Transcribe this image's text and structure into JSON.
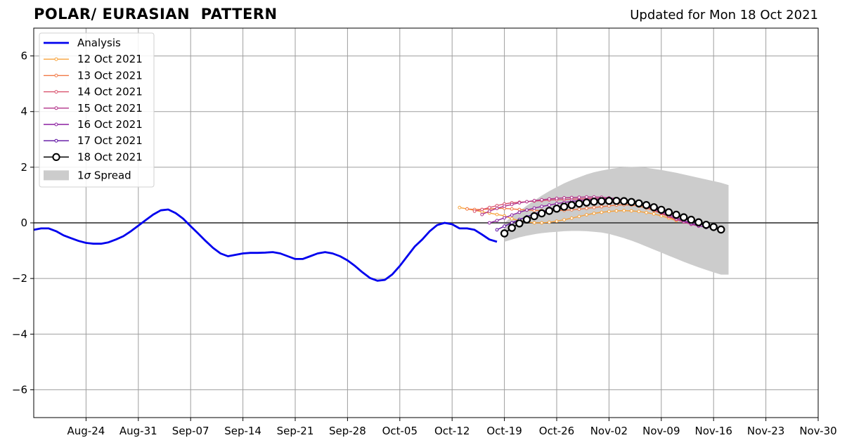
{
  "header": {
    "title": "POLAR/ EURASIAN  PATTERN",
    "updated": "Updated for Mon 18 Oct 2021"
  },
  "chart_data": {
    "type": "line",
    "title": "POLAR/ EURASIAN  PATTERN",
    "xlabel": "",
    "ylabel": "",
    "xlim": [
      "2021-08-17",
      "2021-11-30"
    ],
    "ylim": [
      -7,
      7
    ],
    "grid": true,
    "legend_position": "top-left",
    "x_ticks": [
      "Aug-24",
      "Aug-31",
      "Sep-07",
      "Sep-14",
      "Sep-21",
      "Sep-28",
      "Oct-05",
      "Oct-12",
      "Oct-19",
      "Oct-26",
      "Nov-02",
      "Nov-09",
      "Nov-16",
      "Nov-23",
      "Nov-30"
    ],
    "x_tick_dates": [
      "2021-08-24",
      "2021-08-31",
      "2021-09-07",
      "2021-09-14",
      "2021-09-21",
      "2021-09-28",
      "2021-10-05",
      "2021-10-12",
      "2021-10-19",
      "2021-10-26",
      "2021-11-02",
      "2021-11-09",
      "2021-11-16",
      "2021-11-23",
      "2021-11-30"
    ],
    "y_ticks": [
      -6,
      -4,
      -2,
      0,
      2,
      4,
      6
    ],
    "y_tick_labels": [
      "−6",
      "−4",
      "−2",
      "0",
      "2",
      "4",
      "6"
    ],
    "analysis": {
      "name": "Analysis",
      "color": "#0000ee",
      "dates": [
        "2021-08-17",
        "2021-08-18",
        "2021-08-19",
        "2021-08-20",
        "2021-08-21",
        "2021-08-22",
        "2021-08-23",
        "2021-08-24",
        "2021-08-25",
        "2021-08-26",
        "2021-08-27",
        "2021-08-28",
        "2021-08-29",
        "2021-08-30",
        "2021-08-31",
        "2021-09-01",
        "2021-09-02",
        "2021-09-03",
        "2021-09-04",
        "2021-09-05",
        "2021-09-06",
        "2021-09-07",
        "2021-09-08",
        "2021-09-09",
        "2021-09-10",
        "2021-09-11",
        "2021-09-12",
        "2021-09-13",
        "2021-09-14",
        "2021-09-15",
        "2021-09-16",
        "2021-09-17",
        "2021-09-18",
        "2021-09-19",
        "2021-09-20",
        "2021-09-21",
        "2021-09-22",
        "2021-09-23",
        "2021-09-24",
        "2021-09-25",
        "2021-09-26",
        "2021-09-27",
        "2021-09-28",
        "2021-09-29",
        "2021-09-30",
        "2021-10-01",
        "2021-10-02",
        "2021-10-03",
        "2021-10-04",
        "2021-10-05",
        "2021-10-06",
        "2021-10-07",
        "2021-10-08",
        "2021-10-09",
        "2021-10-10",
        "2021-10-11",
        "2021-10-12",
        "2021-10-13",
        "2021-10-14",
        "2021-10-15",
        "2021-10-16",
        "2021-10-17",
        "2021-10-18"
      ],
      "values": [
        -0.25,
        -0.2,
        -0.2,
        -0.3,
        -0.45,
        -0.55,
        -0.65,
        -0.72,
        -0.75,
        -0.75,
        -0.7,
        -0.6,
        -0.48,
        -0.3,
        -0.1,
        0.1,
        0.3,
        0.45,
        0.48,
        0.35,
        0.15,
        -0.12,
        -0.38,
        -0.65,
        -0.9,
        -1.1,
        -1.2,
        -1.15,
        -1.1,
        -1.08,
        -1.08,
        -1.07,
        -1.05,
        -1.1,
        -1.2,
        -1.3,
        -1.3,
        -1.2,
        -1.1,
        -1.05,
        -1.1,
        -1.2,
        -1.35,
        -1.55,
        -1.78,
        -1.98,
        -2.08,
        -2.05,
        -1.85,
        -1.55,
        -1.2,
        -0.85,
        -0.6,
        -0.3,
        -0.08,
        0.0,
        -0.05,
        -0.2,
        -0.2,
        -0.25,
        -0.42,
        -0.6,
        -0.68
      ]
    },
    "forecasts": [
      {
        "name": "12 Oct 2021",
        "color": "#f7a23b",
        "start": "2021-10-13",
        "values": [
          0.55,
          0.5,
          0.45,
          0.4,
          0.35,
          0.3,
          0.25,
          0.15,
          0.08,
          0.03,
          0.0,
          0.0,
          0.02,
          0.06,
          0.11,
          0.17,
          0.23,
          0.29,
          0.34,
          0.38,
          0.41,
          0.43,
          0.44,
          0.43,
          0.41,
          0.37,
          0.32,
          0.25,
          0.17,
          0.08
        ]
      },
      {
        "name": "13 Oct 2021",
        "color": "#f17845",
        "start": "2021-10-14",
        "values": [
          0.5,
          0.48,
          0.48,
          0.5,
          0.52,
          0.52,
          0.5,
          0.48,
          0.46,
          0.45,
          0.44,
          0.44,
          0.44,
          0.45,
          0.47,
          0.49,
          0.52,
          0.55,
          0.58,
          0.61,
          0.64,
          0.65,
          0.64,
          0.6,
          0.53,
          0.44,
          0.33,
          0.22,
          0.12,
          0.04
        ]
      },
      {
        "name": "14 Oct 2021",
        "color": "#d9526e",
        "start": "2021-10-15",
        "values": [
          0.42,
          0.48,
          0.55,
          0.62,
          0.68,
          0.72,
          0.74,
          0.76,
          0.78,
          0.8,
          0.82,
          0.83,
          0.84,
          0.85,
          0.86,
          0.87,
          0.88,
          0.88,
          0.88,
          0.86,
          0.82,
          0.76,
          0.68,
          0.58,
          0.47,
          0.35,
          0.23,
          0.12,
          0.03,
          -0.05
        ]
      },
      {
        "name": "15 Oct 2021",
        "color": "#b2338a",
        "start": "2021-10-16",
        "values": [
          0.3,
          0.42,
          0.52,
          0.6,
          0.66,
          0.72,
          0.76,
          0.8,
          0.83,
          0.86,
          0.88,
          0.9,
          0.91,
          0.92,
          0.93,
          0.93,
          0.92,
          0.9,
          0.87,
          0.82,
          0.76,
          0.68,
          0.58,
          0.47,
          0.36,
          0.25,
          0.14,
          0.04,
          -0.05,
          -0.12
        ]
      },
      {
        "name": "16 Oct 2021",
        "color": "#8b1fa0",
        "start": "2021-10-17",
        "values": [
          0.0,
          0.08,
          0.18,
          0.28,
          0.38,
          0.46,
          0.53,
          0.59,
          0.64,
          0.69,
          0.73,
          0.77,
          0.8,
          0.83,
          0.85,
          0.86,
          0.86,
          0.85,
          0.82,
          0.77,
          0.7,
          0.62,
          0.52,
          0.41,
          0.3,
          0.19,
          0.08,
          -0.02,
          -0.1,
          -0.17
        ]
      },
      {
        "name": "17 Oct 2021",
        "color": "#5c0ea0",
        "start": "2021-10-18",
        "values": [
          -0.25,
          -0.12,
          0.0,
          0.12,
          0.22,
          0.32,
          0.4,
          0.48,
          0.55,
          0.61,
          0.66,
          0.7,
          0.74,
          0.77,
          0.79,
          0.8,
          0.8,
          0.79,
          0.77,
          0.73,
          0.67,
          0.6,
          0.51,
          0.41,
          0.3,
          0.19,
          0.08,
          -0.02,
          -0.12,
          -0.2
        ]
      }
    ],
    "main_forecast": {
      "name": "18 Oct 2021",
      "color": "#000000",
      "start": "2021-10-19",
      "values": [
        -0.38,
        -0.18,
        -0.02,
        0.12,
        0.24,
        0.34,
        0.43,
        0.51,
        0.58,
        0.64,
        0.69,
        0.73,
        0.76,
        0.78,
        0.79,
        0.79,
        0.78,
        0.75,
        0.7,
        0.64,
        0.56,
        0.47,
        0.38,
        0.29,
        0.2,
        0.11,
        0.02,
        -0.07,
        -0.15,
        -0.24
      ]
    },
    "spread": {
      "name": "1σ Spread",
      "label_prefix": "1",
      "label_symbol": "σ",
      "label_suffix": " Spread",
      "color": "#cccccc",
      "start": "2021-10-19",
      "upper": [
        0.0,
        0.22,
        0.42,
        0.62,
        0.8,
        0.98,
        1.14,
        1.28,
        1.42,
        1.54,
        1.64,
        1.74,
        1.82,
        1.88,
        1.93,
        1.97,
        2.0,
        2.01,
        2.0,
        1.98,
        1.94,
        1.9,
        1.85,
        1.8,
        1.74,
        1.68,
        1.62,
        1.56,
        1.5,
        1.44,
        1.36
      ],
      "lower": [
        -0.68,
        -0.6,
        -0.52,
        -0.46,
        -0.41,
        -0.37,
        -0.34,
        -0.32,
        -0.3,
        -0.29,
        -0.29,
        -0.3,
        -0.32,
        -0.35,
        -0.4,
        -0.47,
        -0.55,
        -0.64,
        -0.74,
        -0.85,
        -0.96,
        -1.07,
        -1.18,
        -1.29,
        -1.4,
        -1.5,
        -1.6,
        -1.69,
        -1.78,
        -1.86,
        -1.86
      ]
    }
  }
}
